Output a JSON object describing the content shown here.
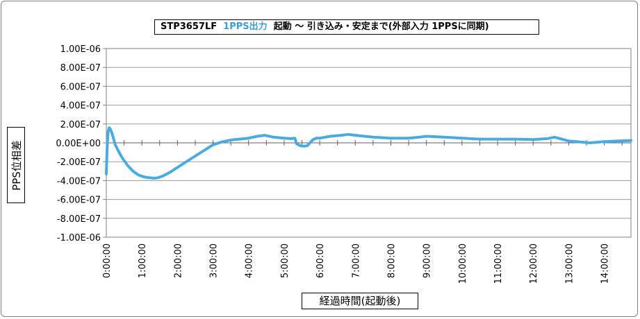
{
  "chart_data": {
    "type": "line",
    "title_parts": {
      "model": "STP3657LF",
      "accent": "1PPS出力",
      "rest": "起動 ～ 引き込み・安定まで(外部入力 1PPSに同期)"
    },
    "xlabel": "経過時間(起動後)",
    "ylabel": "PPS位相差",
    "x_unit": "hours",
    "xlim": [
      0,
      14.75
    ],
    "ylim": [
      -1e-06,
      1e-06
    ],
    "x_tick_labels": [
      "0:00:00",
      "1:00:00",
      "2:00:00",
      "3:00:00",
      "4:00:00",
      "5:00:00",
      "6:00:00",
      "7:00:00",
      "8:00:00",
      "9:00:00",
      "10:00:00",
      "11:00:00",
      "12:00:00",
      "13:00:00",
      "14:00:00"
    ],
    "y_tick_labels": [
      "1.00E-06",
      "8.00E-07",
      "6.00E-07",
      "4.00E-07",
      "2.00E-07",
      "0.00E+00",
      "-2.00E-07",
      "-4.00E-07",
      "-6.00E-07",
      "-8.00E-07",
      "-1.00E-06"
    ],
    "y_tick_values": [
      1e-06,
      8e-07,
      6e-07,
      4e-07,
      2e-07,
      0,
      -2e-07,
      -4e-07,
      -6e-07,
      -8e-07,
      -1e-06
    ],
    "grid": "horizontal",
    "series_color": "#4aabe0",
    "series": [
      {
        "x": [
          0.0,
          0.01,
          0.03,
          0.05,
          0.08,
          0.11,
          0.15,
          0.2,
          0.25,
          0.33,
          0.45,
          0.6,
          0.75,
          0.9,
          1.05,
          1.2,
          1.35,
          1.45,
          1.6,
          1.8,
          2.0,
          2.25,
          2.5,
          2.75,
          3.0,
          3.25,
          3.5,
          3.75,
          4.0,
          4.25,
          4.45,
          4.7,
          5.0,
          5.2,
          5.3,
          5.35,
          5.45,
          5.55,
          5.65,
          5.7,
          5.8,
          5.9,
          6.0,
          6.3,
          6.6,
          6.8,
          7.0,
          7.5,
          8.0,
          8.5,
          8.8,
          9.0,
          9.5,
          10.0,
          10.5,
          11.0,
          11.5,
          12.0,
          12.4,
          12.6,
          12.8,
          13.0,
          13.3,
          13.6,
          13.9,
          14.1,
          14.4,
          14.75
        ],
        "y": [
          -3.3e-07,
          -2e-07,
          0.0,
          1.2e-07,
          1.6e-07,
          1.5e-07,
          1.1e-07,
          5e-08,
          -2e-08,
          -8e-08,
          -1.6e-07,
          -2.4e-07,
          -3e-07,
          -3.4e-07,
          -3.6e-07,
          -3.7e-07,
          -3.75e-07,
          -3.7e-07,
          -3.5e-07,
          -3.1e-07,
          -2.6e-07,
          -2e-07,
          -1.4e-07,
          -8e-08,
          -2e-08,
          1e-08,
          3e-08,
          4e-08,
          5e-08,
          7e-08,
          8e-08,
          6e-08,
          5e-08,
          4.5e-08,
          5e-08,
          -1e-08,
          -3e-08,
          -3.5e-08,
          -3e-08,
          -1e-08,
          3e-08,
          5e-08,
          5e-08,
          7e-08,
          8e-08,
          9e-08,
          8e-08,
          6e-08,
          5e-08,
          5e-08,
          6e-08,
          7e-08,
          6e-08,
          5e-08,
          4e-08,
          4e-08,
          4e-08,
          3.5e-08,
          4.5e-08,
          6e-08,
          4e-08,
          2e-08,
          1e-08,
          0.0,
          1e-08,
          1.5e-08,
          2e-08,
          2.5e-08
        ]
      }
    ]
  }
}
